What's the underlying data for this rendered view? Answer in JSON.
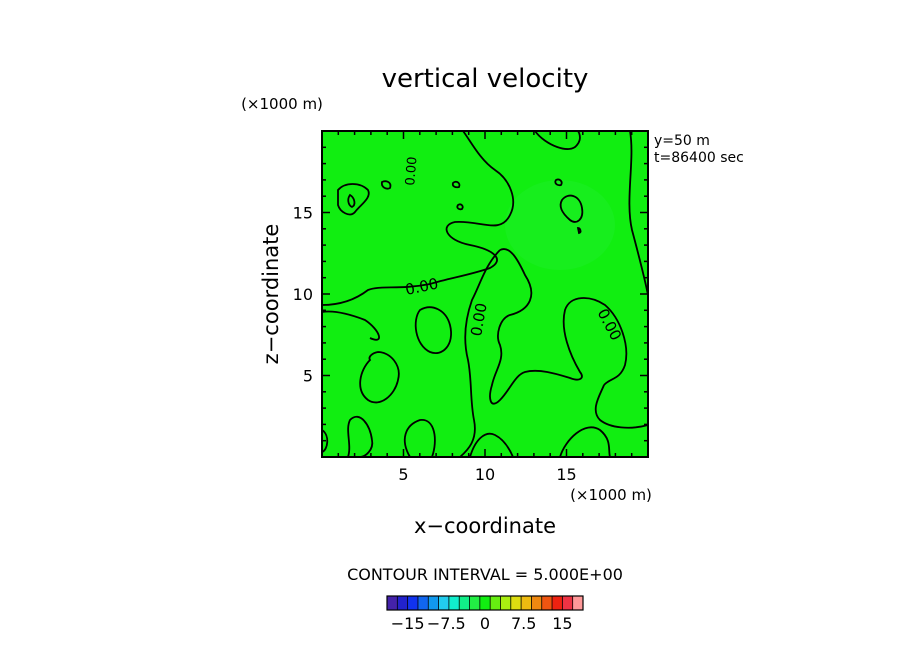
{
  "chart_data": {
    "type": "contour",
    "title": "vertical velocity",
    "xlabel": "x−coordinate",
    "ylabel": "z−coordinate",
    "x_unit": "(×1000 m)",
    "y_unit": "(×1000 m)",
    "xlim": [
      0,
      20
    ],
    "ylim": [
      0,
      20
    ],
    "xticks": [
      5,
      10,
      15
    ],
    "yticks": [
      5,
      10,
      15
    ],
    "xtick_labels": [
      "5",
      "10",
      "15"
    ],
    "ytick_labels": [
      "5",
      "10",
      "15"
    ],
    "annotations": [
      "y=50 m",
      "t=86400 sec"
    ],
    "contour_label": "0.00",
    "contour_interval_text": "CONTOUR INTERVAL = 5.000E+00",
    "field_color": "#11ee11",
    "field_light_color": "#22ee33",
    "contour_color": "#000000",
    "colorbar": {
      "colors": [
        "#4422aa",
        "#2222cc",
        "#1133ee",
        "#1166ee",
        "#1199ee",
        "#22ccee",
        "#11eecc",
        "#11ee88",
        "#22ee44",
        "#11ee11",
        "#66ee11",
        "#aaee11",
        "#dddd11",
        "#eebb11",
        "#ee8811",
        "#ee5511",
        "#ee2211",
        "#ee3344",
        "#ff9999"
      ],
      "tick_labels": [
        "−15",
        "−7.5",
        "0",
        "7.5",
        "15"
      ],
      "tick_values": [
        -15,
        -7.5,
        0,
        7.5,
        15
      ],
      "range": [
        -19,
        19
      ]
    }
  }
}
